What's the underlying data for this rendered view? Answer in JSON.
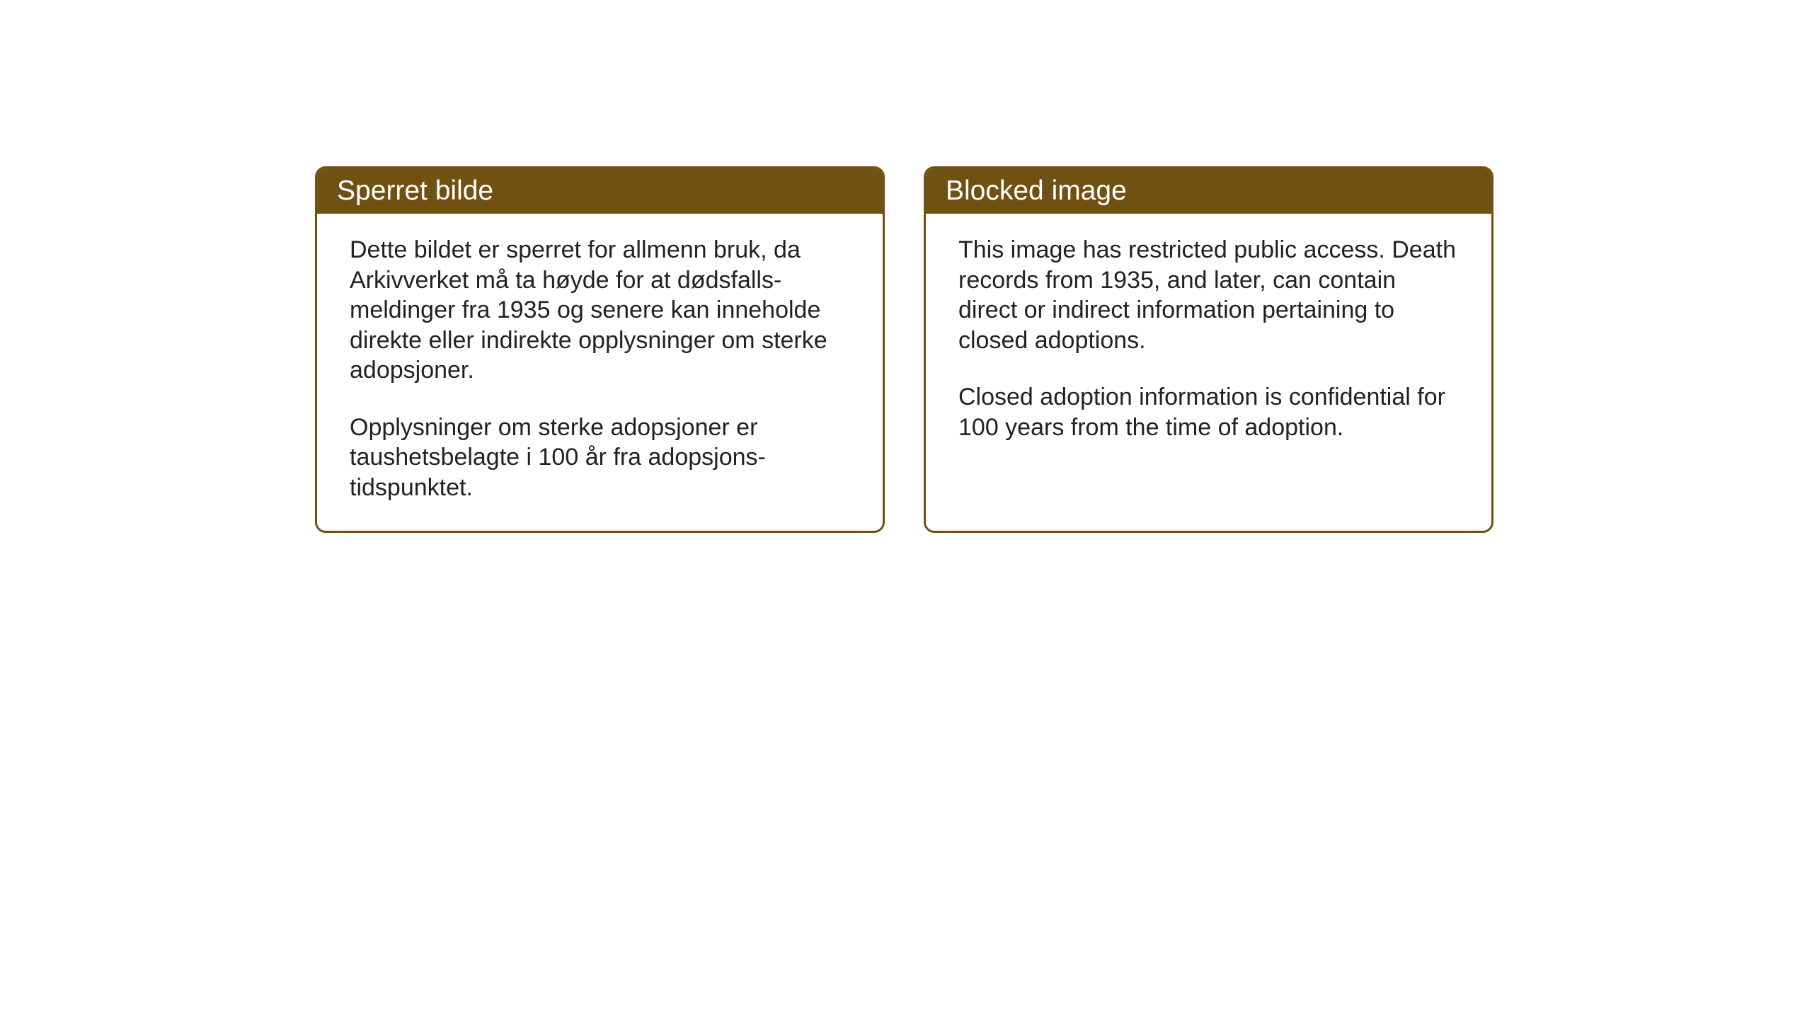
{
  "layout": {
    "background_color": "#ffffff",
    "card_border_color": "#715111",
    "card_border_width": 3,
    "card_border_radius": 15,
    "header_background_color": "#715111",
    "header_text_color": "#ffffff",
    "body_text_color": "#222222",
    "header_font_size": 39,
    "body_font_size": 34
  },
  "cards": {
    "norwegian": {
      "title": "Sperret bilde",
      "paragraph1": "Dette bildet er sperret for allmenn bruk, da Arkivverket må ta høyde for at dødsfalls-meldinger fra 1935 og senere kan inneholde direkte eller indirekte opplysninger om sterke adopsjoner.",
      "paragraph2": "Opplysninger om sterke adopsjoner er taushetsbelagte i 100 år fra adopsjons-tidspunktet."
    },
    "english": {
      "title": "Blocked image",
      "paragraph1": "This image has restricted public access. Death records from 1935, and later, can contain direct or indirect information pertaining to closed adoptions.",
      "paragraph2": "Closed adoption information is confidential for 100 years from the time of adoption."
    }
  }
}
